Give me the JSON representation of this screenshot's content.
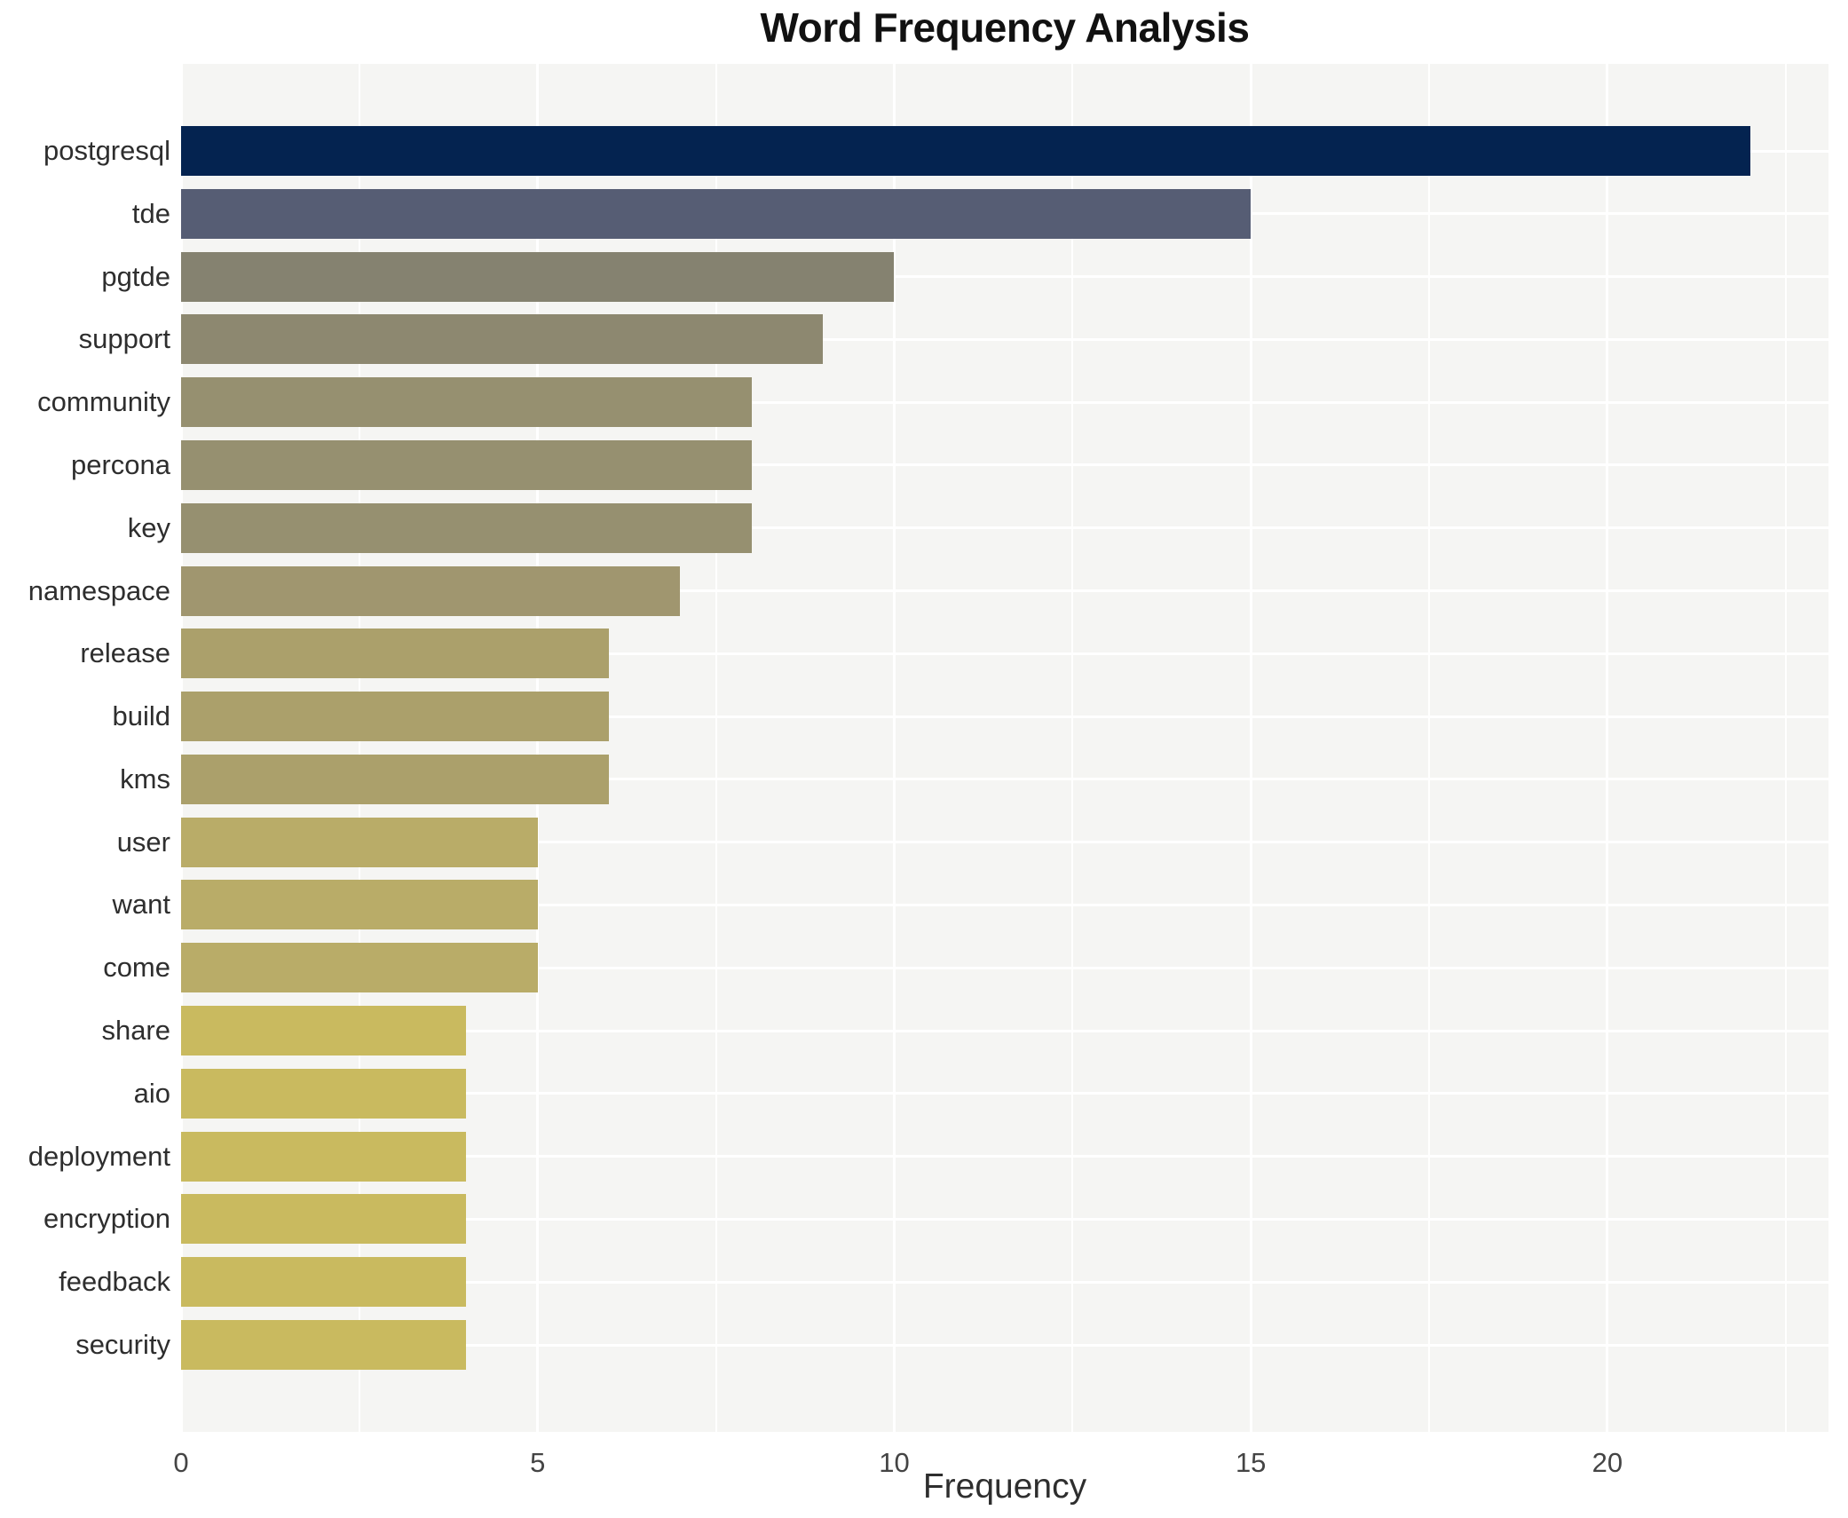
{
  "chart_data": {
    "type": "bar",
    "orientation": "horizontal",
    "title": "Word Frequency Analysis",
    "xlabel": "Frequency",
    "ylabel": "",
    "categories": [
      "postgresql",
      "tde",
      "pgtde",
      "support",
      "community",
      "percona",
      "key",
      "namespace",
      "release",
      "build",
      "kms",
      "user",
      "want",
      "come",
      "share",
      "aio",
      "deployment",
      "encryption",
      "feedback",
      "security"
    ],
    "values": [
      22,
      15,
      10,
      9,
      8,
      8,
      8,
      7,
      6,
      6,
      6,
      5,
      5,
      5,
      4,
      4,
      4,
      4,
      4,
      4
    ],
    "bar_colors": [
      "#042350",
      "#565d74",
      "#858270",
      "#8d8870",
      "#969070",
      "#969070",
      "#969070",
      "#a0966f",
      "#aba06b",
      "#aba06b",
      "#aba06b",
      "#b9ac68",
      "#b9ac68",
      "#b9ac68",
      "#c9ba5f",
      "#c9ba5f",
      "#c9ba5f",
      "#c9ba5f",
      "#c9ba5f",
      "#c9ba5f"
    ],
    "xlim": [
      0,
      23.1
    ],
    "xticks": [
      0,
      5,
      10,
      15,
      20
    ],
    "xticks_minor": [
      2.5,
      7.5,
      12.5,
      17.5,
      22.5
    ],
    "grid": "on",
    "panel_bg": "#f5f5f3",
    "grid_color": "#ffffff",
    "legend": "none"
  }
}
